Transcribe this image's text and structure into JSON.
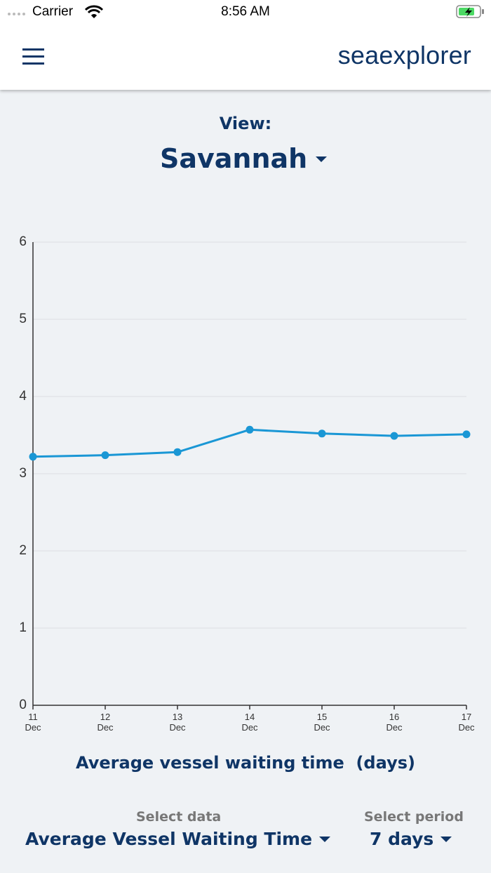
{
  "status_bar": {
    "carrier": "Carrier",
    "time": "8:56 AM"
  },
  "header": {
    "brand": "seaexplorer"
  },
  "view": {
    "label": "View:",
    "value": "Savannah"
  },
  "chart_data": {
    "type": "line",
    "title": "Average vessel waiting time  (days)",
    "categories": [
      "11 Dec",
      "12 Dec",
      "13 Dec",
      "14 Dec",
      "15 Dec",
      "16 Dec",
      "17 Dec"
    ],
    "values": [
      3.22,
      3.24,
      3.28,
      3.57,
      3.52,
      3.49,
      3.51
    ],
    "color": "#1a97d5",
    "ylim": [
      0,
      6
    ],
    "yticks": [
      0,
      1,
      2,
      3,
      4,
      5,
      6
    ],
    "grid": true
  },
  "controls": {
    "data_label": "Select data",
    "data_value": "Average Vessel Waiting Time",
    "period_label": "Select period",
    "period_value": "7 days"
  }
}
